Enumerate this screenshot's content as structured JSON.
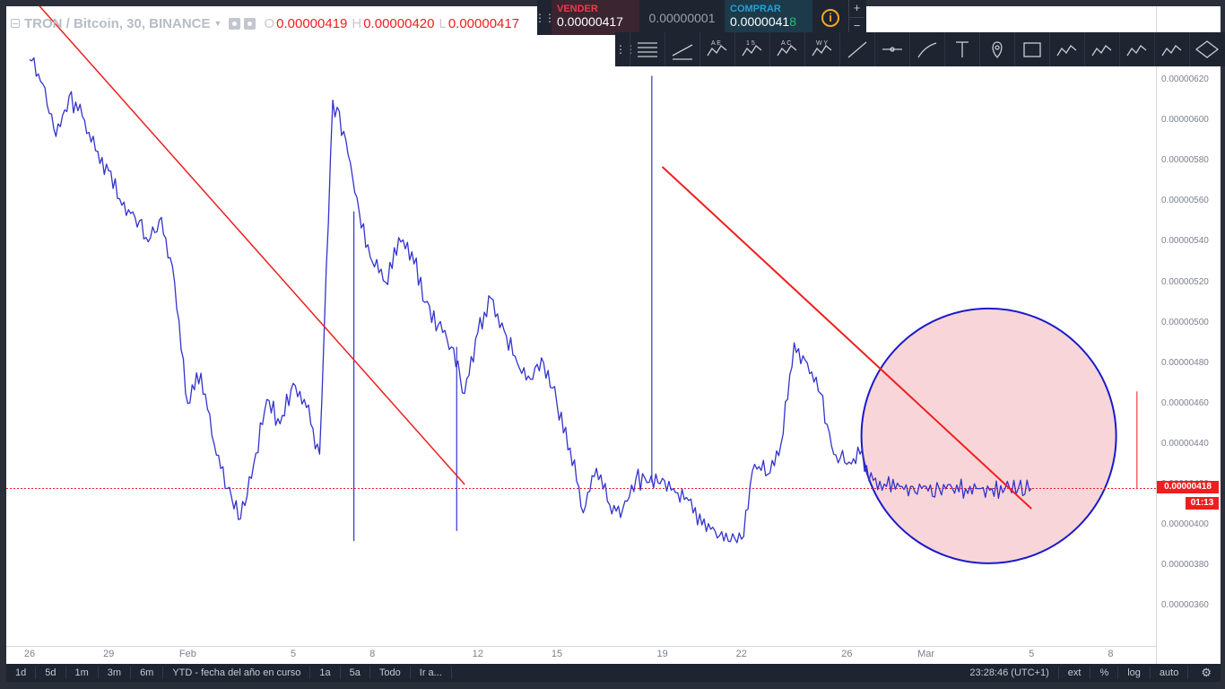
{
  "legend": {
    "symbol": "TRON / Bitcoin, 30, BINANCE",
    "open_key": "O",
    "open": "0.00000419",
    "high_key": "H",
    "high": "0.00000420",
    "low_key": "L",
    "low": "0.00000417"
  },
  "trade_panel": {
    "sell_label": "VENDER",
    "sell_price": "0.00000417",
    "spread": "0.00000001",
    "buy_label": "COMPRAR",
    "buy_price_main": "0.0000041",
    "buy_price_last": "8",
    "info": "i",
    "plus": "+",
    "minus": "−"
  },
  "draw_tools": [
    {
      "name": "horizontal-lines-icon"
    },
    {
      "name": "channel-icon"
    },
    {
      "name": "pattern-abcde-icon",
      "text": "A E"
    },
    {
      "name": "elliott-wave-icon",
      "text": "1 5"
    },
    {
      "name": "abc-pattern-icon",
      "text": "A C"
    },
    {
      "name": "wxy-pattern-icon",
      "text": "W Y"
    },
    {
      "name": "trend-line-icon"
    },
    {
      "name": "horizontal-ray-icon"
    },
    {
      "name": "brush-icon"
    },
    {
      "name": "text-tool-icon"
    },
    {
      "name": "price-pin-icon"
    },
    {
      "name": "rectangle-icon"
    },
    {
      "name": "pitchfork-icon"
    },
    {
      "name": "gann-fan-icon"
    },
    {
      "name": "head-shoulders-icon"
    },
    {
      "name": "triangle-pattern-icon"
    },
    {
      "name": "ellipse-tool-icon"
    }
  ],
  "bottom_bar": {
    "ranges": [
      "1d",
      "5d",
      "1m",
      "3m",
      "6m",
      "YTD - fecha del año en curso",
      "1a",
      "5a",
      "Todo",
      "Ir a..."
    ],
    "clock": "23:28:46 (UTC+1)",
    "toggles": [
      "ext",
      "%",
      "log",
      "auto"
    ],
    "settings": "⚙"
  },
  "chart_data": {
    "type": "line",
    "title": "TRON / Bitcoin, 30, BINANCE",
    "interval": "30",
    "exchange": "BINANCE",
    "ylim": [
      3.4e-06,
      6.5e-06
    ],
    "y_ticks": [
      "0.00000620",
      "0.00000600",
      "0.00000580",
      "0.00000560",
      "0.00000540",
      "0.00000520",
      "0.00000500",
      "0.00000480",
      "0.00000460",
      "0.00000440",
      "0.00000420",
      "0.00000400",
      "0.00000380",
      "0.00000360"
    ],
    "x_ticks": [
      "26",
      "29",
      "Feb",
      "5",
      "8",
      "12",
      "15",
      "19",
      "22",
      "26",
      "Mar",
      "5",
      "8"
    ],
    "x_tick_index": [
      0,
      3,
      6,
      10,
      13,
      17,
      20,
      24,
      27,
      31,
      34,
      38,
      41
    ],
    "x": [
      0,
      0.5,
      1,
      1.5,
      2,
      2.5,
      3,
      3.5,
      4,
      4.5,
      5,
      5.5,
      6,
      6.5,
      7,
      7.5,
      8,
      8.5,
      9,
      9.5,
      10,
      10.5,
      11,
      11.5,
      12,
      12.5,
      13,
      13.5,
      14,
      14.5,
      15,
      15.5,
      16,
      16.5,
      17,
      17.5,
      18,
      18.5,
      19,
      19.5,
      20,
      20.5,
      21,
      21.5,
      22,
      22.5,
      23,
      23.5,
      24,
      24.5,
      25,
      25.5,
      26,
      26.5,
      27,
      27.5,
      28,
      28.5,
      29,
      29.5,
      30,
      30.5,
      31,
      31.5,
      32,
      32.5,
      33,
      33.5,
      34,
      34.5,
      35,
      35.5,
      36,
      36.5,
      37,
      37.5,
      38
    ],
    "series": [
      {
        "values": [
          6.3,
          6.18,
          5.92,
          6.12,
          6.02,
          5.85,
          5.75,
          5.58,
          5.52,
          5.4,
          5.52,
          5.2,
          4.6,
          4.75,
          4.4,
          4.18,
          4.03,
          4.3,
          4.62,
          4.5,
          4.7,
          4.58,
          4.35,
          6.1,
          5.9,
          5.55,
          5.3,
          5.2,
          5.42,
          5.35,
          5.1,
          4.99,
          4.88,
          4.65,
          4.95,
          5.12,
          4.96,
          4.8,
          4.72,
          4.8,
          4.6,
          4.38,
          4.06,
          4.28,
          4.1,
          4.08,
          4.23,
          4.21,
          4.23,
          4.16,
          4.12,
          4.0,
          3.97,
          3.92,
          3.93,
          4.3,
          4.25,
          4.4,
          4.9,
          4.8,
          4.65,
          4.35,
          4.3,
          4.35,
          4.22,
          4.19,
          4.19,
          4.19,
          4.19,
          4.18,
          4.18,
          4.18,
          4.18,
          4.18,
          4.18,
          4.18,
          4.18
        ],
        "spikes": [
          {
            "x": 12.3,
            "low": 3.92
          },
          {
            "x": 16.2,
            "low": 3.97
          },
          {
            "x": 23.6,
            "high": 6.22
          },
          {
            "x": 42,
            "high": 4.66
          }
        ],
        "color": "#3333cc"
      }
    ],
    "trend_lines": [
      {
        "x1": 0,
        "y1": 6.62,
        "x2": 16.5,
        "y2": 4.2,
        "color": "#ef1e1e"
      },
      {
        "x1": 24,
        "y1": 5.77,
        "x2": 38,
        "y2": 4.08,
        "color": "#ef1e1e"
      }
    ],
    "highlight_ellipse": {
      "cx_date": "Mar",
      "cy": 4.44,
      "label": "highlight-region"
    },
    "current_price": "0.00000418",
    "countdown": "01:13",
    "current_value": 4.18
  }
}
